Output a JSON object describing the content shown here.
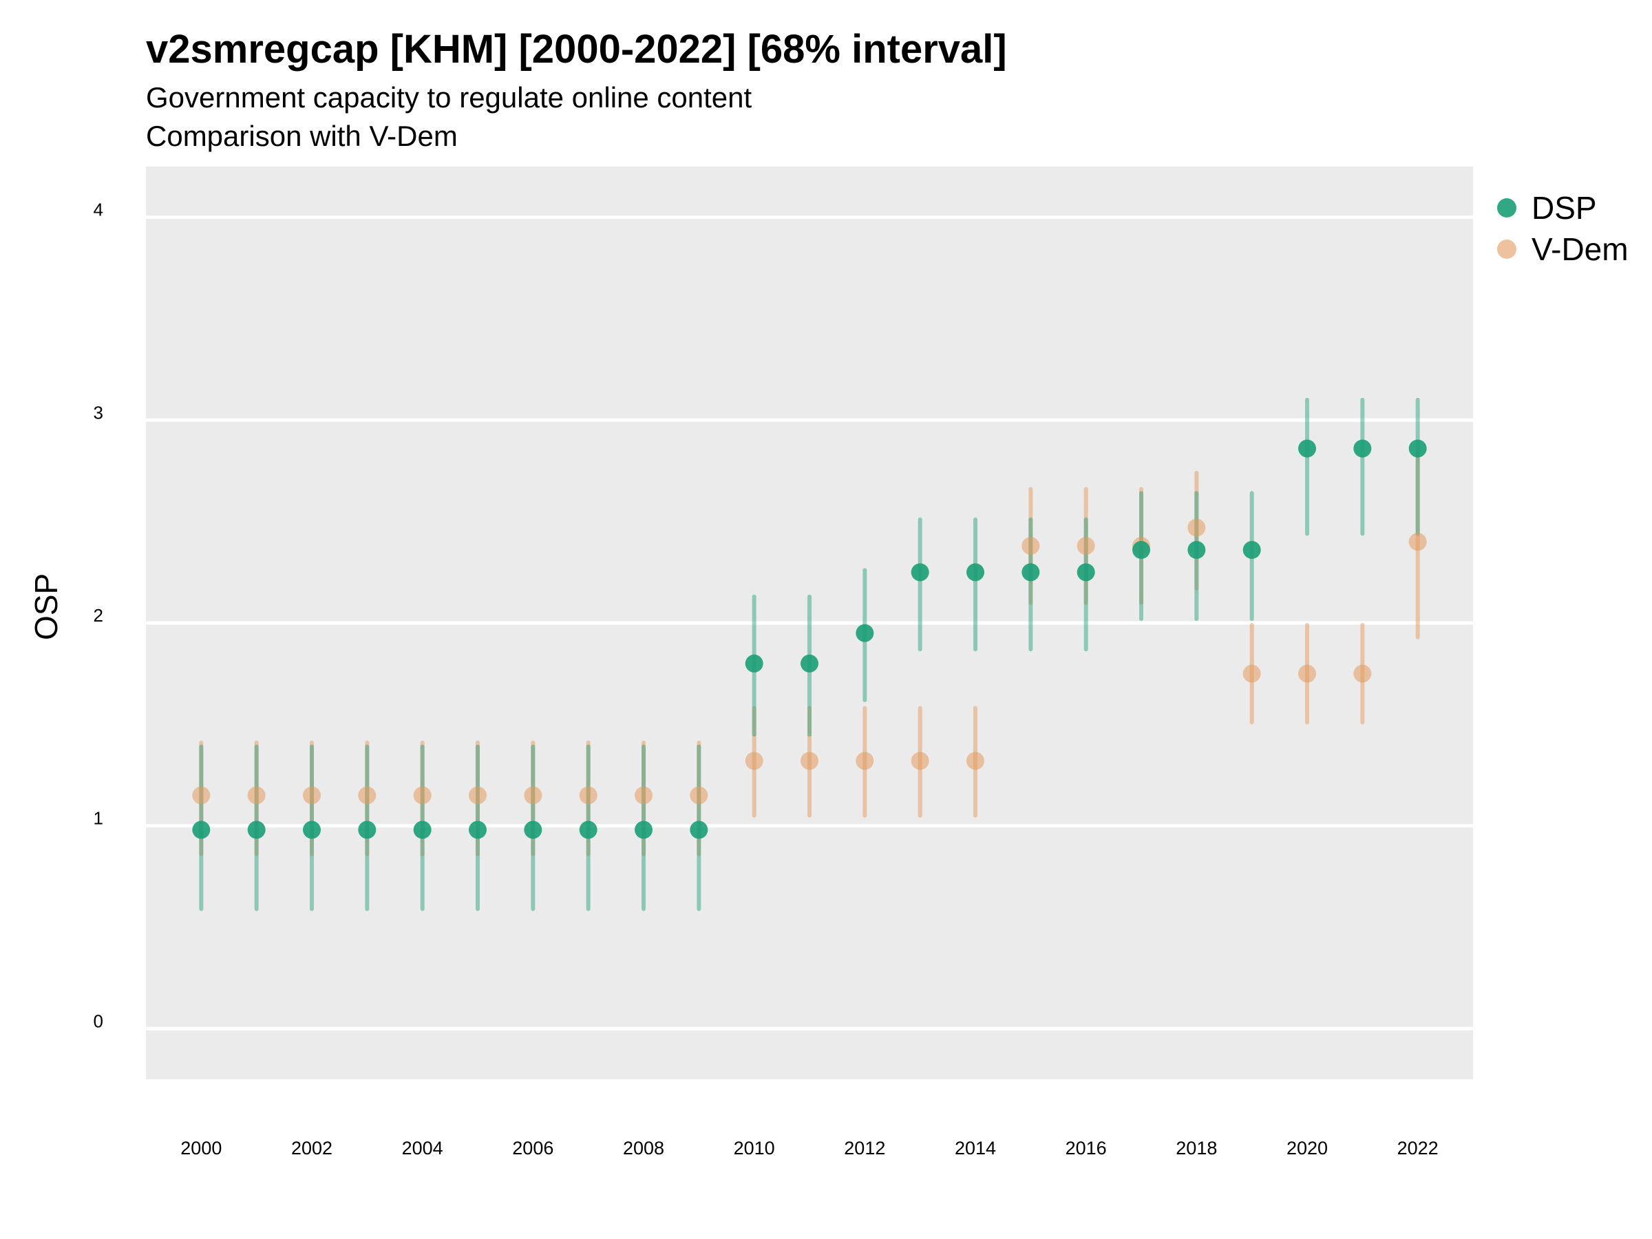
{
  "title": "v2smregcap [KHM] [2000-2022] [68% interval]",
  "subtitle_line1": "Government capacity to regulate online content",
  "subtitle_line2": "Comparison with V-Dem",
  "chart_data": {
    "type": "scatter",
    "title": "v2smregcap [KHM] [2000-2022] [68% interval]",
    "ylabel": "OSP",
    "xlabel": "",
    "ylim": [
      -0.25,
      4.25
    ],
    "xlim": [
      1999,
      2023
    ],
    "yticks": [
      0,
      1,
      2,
      3,
      4
    ],
    "xticks": [
      2000,
      2002,
      2004,
      2006,
      2008,
      2010,
      2012,
      2014,
      2016,
      2018,
      2020,
      2022
    ],
    "grid": true,
    "legend_position": "right",
    "series": [
      {
        "name": "DSP",
        "color": "#1b9e77",
        "points": [
          {
            "x": 2000,
            "y": 0.98,
            "lo": 0.59,
            "hi": 1.39
          },
          {
            "x": 2001,
            "y": 0.98,
            "lo": 0.59,
            "hi": 1.39
          },
          {
            "x": 2002,
            "y": 0.98,
            "lo": 0.59,
            "hi": 1.39
          },
          {
            "x": 2003,
            "y": 0.98,
            "lo": 0.59,
            "hi": 1.39
          },
          {
            "x": 2004,
            "y": 0.98,
            "lo": 0.59,
            "hi": 1.39
          },
          {
            "x": 2005,
            "y": 0.98,
            "lo": 0.59,
            "hi": 1.39
          },
          {
            "x": 2006,
            "y": 0.98,
            "lo": 0.59,
            "hi": 1.39
          },
          {
            "x": 2007,
            "y": 0.98,
            "lo": 0.59,
            "hi": 1.39
          },
          {
            "x": 2008,
            "y": 0.98,
            "lo": 0.59,
            "hi": 1.39
          },
          {
            "x": 2009,
            "y": 0.98,
            "lo": 0.59,
            "hi": 1.39
          },
          {
            "x": 2010,
            "y": 1.8,
            "lo": 1.45,
            "hi": 2.13
          },
          {
            "x": 2011,
            "y": 1.8,
            "lo": 1.45,
            "hi": 2.13
          },
          {
            "x": 2012,
            "y": 1.95,
            "lo": 1.62,
            "hi": 2.26
          },
          {
            "x": 2013,
            "y": 2.25,
            "lo": 1.87,
            "hi": 2.51
          },
          {
            "x": 2014,
            "y": 2.25,
            "lo": 1.87,
            "hi": 2.51
          },
          {
            "x": 2015,
            "y": 2.25,
            "lo": 1.87,
            "hi": 2.51
          },
          {
            "x": 2016,
            "y": 2.25,
            "lo": 1.87,
            "hi": 2.51
          },
          {
            "x": 2017,
            "y": 2.36,
            "lo": 2.02,
            "hi": 2.64
          },
          {
            "x": 2018,
            "y": 2.36,
            "lo": 2.02,
            "hi": 2.64
          },
          {
            "x": 2019,
            "y": 2.36,
            "lo": 2.02,
            "hi": 2.64
          },
          {
            "x": 2020,
            "y": 2.86,
            "lo": 2.44,
            "hi": 3.1
          },
          {
            "x": 2021,
            "y": 2.86,
            "lo": 2.44,
            "hi": 3.1
          },
          {
            "x": 2022,
            "y": 2.86,
            "lo": 2.44,
            "hi": 3.1
          }
        ]
      },
      {
        "name": "V-Dem",
        "color": "#e39a5f",
        "points": [
          {
            "x": 2000,
            "y": 1.15,
            "lo": 0.86,
            "hi": 1.41
          },
          {
            "x": 2001,
            "y": 1.15,
            "lo": 0.86,
            "hi": 1.41
          },
          {
            "x": 2002,
            "y": 1.15,
            "lo": 0.86,
            "hi": 1.41
          },
          {
            "x": 2003,
            "y": 1.15,
            "lo": 0.86,
            "hi": 1.41
          },
          {
            "x": 2004,
            "y": 1.15,
            "lo": 0.86,
            "hi": 1.41
          },
          {
            "x": 2005,
            "y": 1.15,
            "lo": 0.86,
            "hi": 1.41
          },
          {
            "x": 2006,
            "y": 1.15,
            "lo": 0.86,
            "hi": 1.41
          },
          {
            "x": 2007,
            "y": 1.15,
            "lo": 0.86,
            "hi": 1.41
          },
          {
            "x": 2008,
            "y": 1.15,
            "lo": 0.86,
            "hi": 1.41
          },
          {
            "x": 2009,
            "y": 1.15,
            "lo": 0.86,
            "hi": 1.41
          },
          {
            "x": 2010,
            "y": 1.32,
            "lo": 1.05,
            "hi": 1.58
          },
          {
            "x": 2011,
            "y": 1.32,
            "lo": 1.05,
            "hi": 1.58
          },
          {
            "x": 2012,
            "y": 1.32,
            "lo": 1.05,
            "hi": 1.58
          },
          {
            "x": 2013,
            "y": 1.32,
            "lo": 1.05,
            "hi": 1.58
          },
          {
            "x": 2014,
            "y": 1.32,
            "lo": 1.05,
            "hi": 1.58
          },
          {
            "x": 2015,
            "y": 2.38,
            "lo": 2.1,
            "hi": 2.66
          },
          {
            "x": 2016,
            "y": 2.38,
            "lo": 2.1,
            "hi": 2.66
          },
          {
            "x": 2017,
            "y": 2.38,
            "lo": 2.1,
            "hi": 2.66
          },
          {
            "x": 2018,
            "y": 2.47,
            "lo": 2.17,
            "hi": 2.74
          },
          {
            "x": 2019,
            "y": 1.75,
            "lo": 1.51,
            "hi": 1.99
          },
          {
            "x": 2020,
            "y": 1.75,
            "lo": 1.51,
            "hi": 1.99
          },
          {
            "x": 2021,
            "y": 1.75,
            "lo": 1.51,
            "hi": 1.99
          },
          {
            "x": 2022,
            "y": 2.4,
            "lo": 1.93,
            "hi": 2.84
          }
        ]
      }
    ]
  },
  "legend": [
    {
      "label": "DSP",
      "color": "#1b9e77"
    },
    {
      "label": "V-Dem",
      "color": "#e39a5f"
    }
  ]
}
